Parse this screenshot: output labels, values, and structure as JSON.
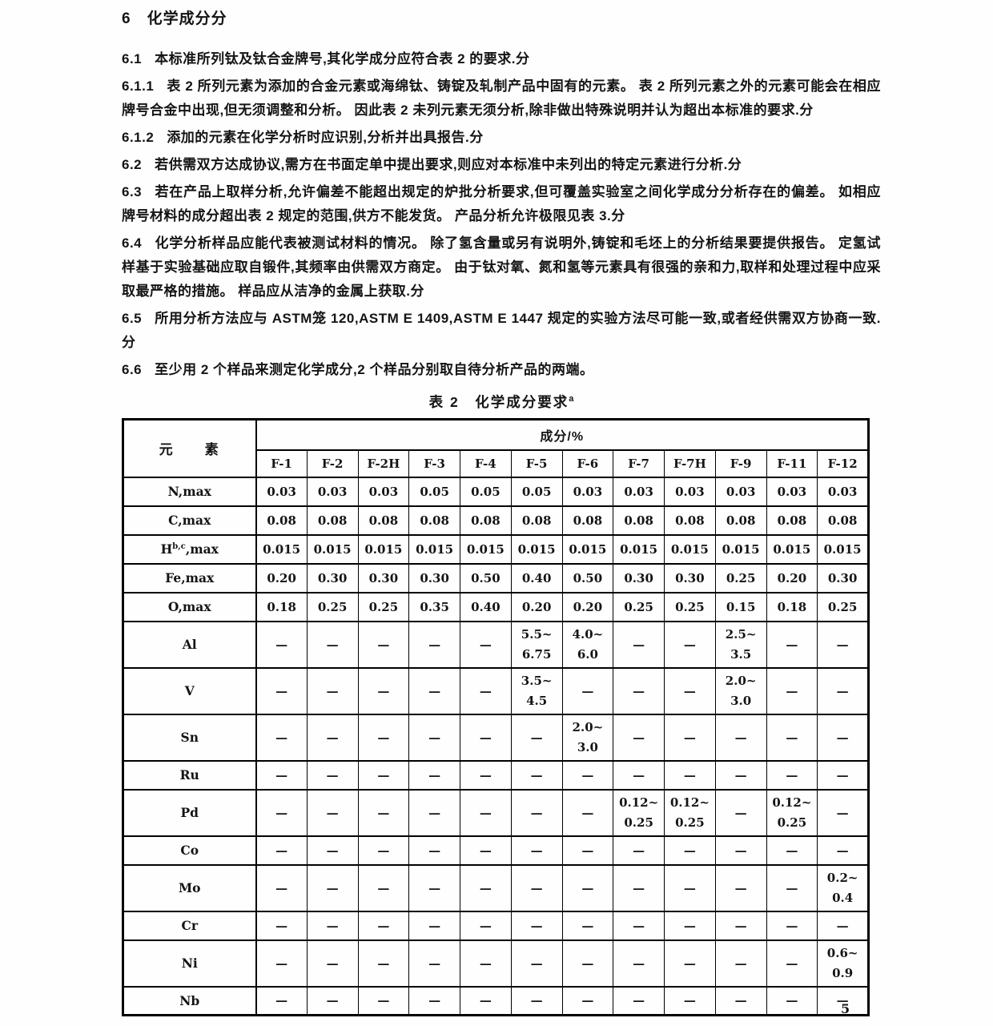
{
  "page": {
    "number": "5"
  },
  "section": {
    "heading_num": "6",
    "heading_text": "化学成分分",
    "clauses": [
      {
        "num": "6.1",
        "text": "本标准所列钛及钛合金牌号,其化学成分应符合表 2 的要求.分"
      },
      {
        "num": "6.1.1",
        "text": "表 2 所列元素为添加的合金元素或海绵钛、铸锭及轧制产品中固有的元素。 表 2 所列元素之外的元素可能会在相应牌号合金中出现,但无须调整和分析。 因此表 2 未列元素无须分析,除非做出特殊说明并认为超出本标准的要求.分"
      },
      {
        "num": "6.1.2",
        "text": "添加的元素在化学分析时应识别,分析并出具报告.分"
      },
      {
        "num": "6.2",
        "text": "若供需双方达成协议,需方在书面定单中提出要求,则应对本标准中未列出的特定元素进行分析.分"
      },
      {
        "num": "6.3",
        "text": "若在产品上取样分析,允许偏差不能超出规定的炉批分析要求,但可覆盖实验室之间化学成分分析存在的偏差。 如相应牌号材料的成分超出表 2 规定的范围,供方不能发货。 产品分析允许极限见表 3.分"
      },
      {
        "num": "6.4",
        "text": "化学分析样品应能代表被测试材料的情况。 除了氢含量或另有说明外,铸锭和毛坯上的分析结果要提供报告。 定氢试样基于实验基础应取自锻件,其频率由供需双方商定。 由于钛对氧、氮和氢等元素具有很强的亲和力,取样和处理过程中应采取最严格的措施。 样品应从洁净的金属上获取.分"
      },
      {
        "num": "6.5",
        "text": "所用分析方法应与 ASTM笼 120,ASTM E 1409,ASTM E 1447 规定的实验方法尽可能一致,或者经供需双方协商一致.分"
      },
      {
        "num": "6.6",
        "text": "至少用 2 个样品来测定化学成分,2 个样品分别取自待分析产品的两端。"
      }
    ]
  },
  "table": {
    "title": "表 2　化学成分要求",
    "title_sup": "a",
    "element_header": "元　　素",
    "composition_header": "成分/%",
    "columns": [
      "F-1",
      "F-2",
      "F-2H",
      "F-3",
      "F-4",
      "F-5",
      "F-6",
      "F-7",
      "F-7H",
      "F-9",
      "F-11",
      "F-12"
    ],
    "rows": [
      {
        "pre": "N",
        "sup": "",
        "post": ",max",
        "values": [
          "0.03",
          "0.03",
          "0.03",
          "0.05",
          "0.05",
          "0.05",
          "0.03",
          "0.03",
          "0.03",
          "0.03",
          "0.03",
          "0.03"
        ]
      },
      {
        "pre": "C",
        "sup": "",
        "post": ",max",
        "values": [
          "0.08",
          "0.08",
          "0.08",
          "0.08",
          "0.08",
          "0.08",
          "0.08",
          "0.08",
          "0.08",
          "0.08",
          "0.08",
          "0.08"
        ]
      },
      {
        "pre": "H",
        "sup": "b,c",
        "post": ",max",
        "values": [
          "0.015",
          "0.015",
          "0.015",
          "0.015",
          "0.015",
          "0.015",
          "0.015",
          "0.015",
          "0.015",
          "0.015",
          "0.015",
          "0.015"
        ]
      },
      {
        "pre": "Fe",
        "sup": "",
        "post": ",max",
        "values": [
          "0.20",
          "0.30",
          "0.30",
          "0.30",
          "0.50",
          "0.40",
          "0.50",
          "0.30",
          "0.30",
          "0.25",
          "0.20",
          "0.30"
        ]
      },
      {
        "pre": "O",
        "sup": "",
        "post": ",max",
        "values": [
          "0.18",
          "0.25",
          "0.25",
          "0.35",
          "0.40",
          "0.20",
          "0.20",
          "0.25",
          "0.25",
          "0.15",
          "0.18",
          "0.25"
        ]
      },
      {
        "pre": "Al",
        "sup": "",
        "post": "",
        "values": [
          "—",
          "—",
          "—",
          "—",
          "—",
          [
            "5.5~",
            "6.75"
          ],
          [
            "4.0~",
            "6.0"
          ],
          "—",
          "—",
          [
            "2.5~",
            "3.5"
          ],
          "—",
          "—"
        ]
      },
      {
        "pre": "V",
        "sup": "",
        "post": "",
        "values": [
          "—",
          "—",
          "—",
          "—",
          "—",
          [
            "3.5~",
            "4.5"
          ],
          "—",
          "—",
          "—",
          [
            "2.0~",
            "3.0"
          ],
          "—",
          "—"
        ]
      },
      {
        "pre": "Sn",
        "sup": "",
        "post": "",
        "values": [
          "—",
          "—",
          "—",
          "—",
          "—",
          "—",
          [
            "2.0~",
            "3.0"
          ],
          "—",
          "—",
          "—",
          "—",
          "—"
        ]
      },
      {
        "pre": "Ru",
        "sup": "",
        "post": "",
        "values": [
          "—",
          "—",
          "—",
          "—",
          "—",
          "—",
          "—",
          "—",
          "—",
          "—",
          "—",
          "—"
        ]
      },
      {
        "pre": "Pd",
        "sup": "",
        "post": "",
        "values": [
          "—",
          "—",
          "—",
          "—",
          "—",
          "—",
          "—",
          [
            "0.12~",
            "0.25"
          ],
          [
            "0.12~",
            "0.25"
          ],
          "—",
          [
            "0.12~",
            "0.25"
          ],
          "—"
        ]
      },
      {
        "pre": "Co",
        "sup": "",
        "post": "",
        "values": [
          "—",
          "—",
          "—",
          "—",
          "—",
          "—",
          "—",
          "—",
          "—",
          "—",
          "—",
          "—"
        ]
      },
      {
        "pre": "Mo",
        "sup": "",
        "post": "",
        "values": [
          "—",
          "—",
          "—",
          "—",
          "—",
          "—",
          "—",
          "—",
          "—",
          "—",
          "—",
          [
            "0.2~",
            "0.4"
          ]
        ]
      },
      {
        "pre": "Cr",
        "sup": "",
        "post": "",
        "values": [
          "—",
          "—",
          "—",
          "—",
          "—",
          "—",
          "—",
          "—",
          "—",
          "—",
          "—",
          "—"
        ]
      },
      {
        "pre": "Ni",
        "sup": "",
        "post": "",
        "values": [
          "—",
          "—",
          "—",
          "—",
          "—",
          "—",
          "—",
          "—",
          "—",
          "—",
          "—",
          [
            "0.6~",
            "0.9"
          ]
        ]
      },
      {
        "pre": "Nb",
        "sup": "",
        "post": "",
        "values": [
          "—",
          "—",
          "—",
          "—",
          "—",
          "—",
          "—",
          "—",
          "—",
          "—",
          "—",
          "—"
        ]
      }
    ]
  }
}
